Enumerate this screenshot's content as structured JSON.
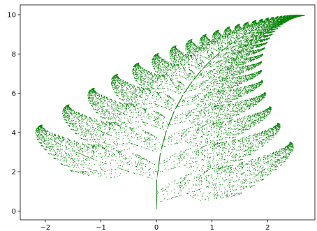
{
  "chart_data": {
    "type": "scatter",
    "title": "",
    "xlabel": "",
    "ylabel": "",
    "xlim": [
      -2.45,
      2.85
    ],
    "ylim": [
      -0.45,
      10.5
    ],
    "grid": false,
    "legend": "none",
    "x_ticks": [
      -2,
      -1,
      0,
      1,
      2
    ],
    "y_ticks": [
      0,
      2,
      4,
      6,
      8,
      10
    ],
    "x_tick_labels": [
      "−2",
      "−1",
      "0",
      "1",
      "2"
    ],
    "y_tick_labels": [
      "0",
      "2",
      "4",
      "6",
      "8",
      "10"
    ],
    "series": [
      {
        "color": "#008000",
        "marker": ".",
        "generator": "barnsley-fern-ifs",
        "point_count": 20000,
        "ifs": [
          {
            "a": 0,
            "b": 0,
            "c": 0,
            "d": 0.16,
            "e": 0,
            "f": 0,
            "p": 0.01
          },
          {
            "a": 0.85,
            "b": 0.04,
            "c": -0.04,
            "d": 0.85,
            "e": 0,
            "f": 1.6,
            "p": 0.85
          },
          {
            "a": 0.2,
            "b": -0.26,
            "c": 0.23,
            "d": 0.22,
            "e": 0,
            "f": 1.6,
            "p": 0.07
          },
          {
            "a": -0.15,
            "b": 0.28,
            "c": 0.26,
            "d": 0.24,
            "e": 0,
            "f": 0.44,
            "p": 0.07
          }
        ]
      }
    ]
  }
}
